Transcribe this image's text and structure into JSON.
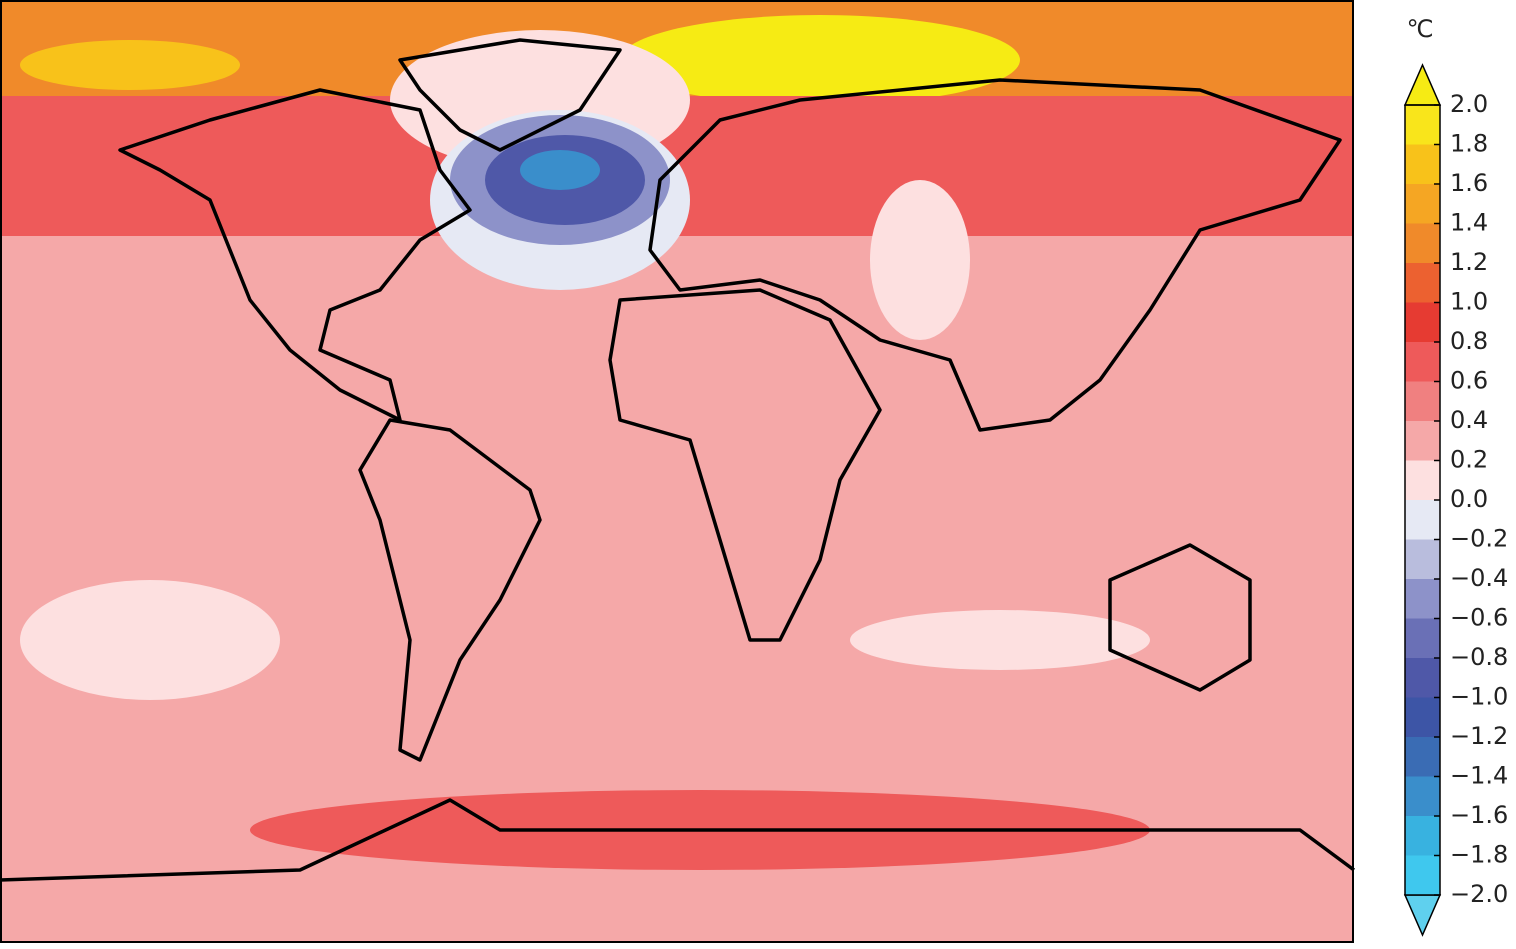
{
  "colorbar": {
    "unit": "℃",
    "range": [
      -2,
      2
    ],
    "ticks": [
      {
        "value": 2,
        "label": "2.0"
      },
      {
        "value": 1.8,
        "label": "1.8"
      },
      {
        "value": 1.6,
        "label": "1.6"
      },
      {
        "value": 1.4,
        "label": "1.4"
      },
      {
        "value": 1.2,
        "label": "1.2"
      },
      {
        "value": 1,
        "label": "1.0"
      },
      {
        "value": 0.8,
        "label": "0.8"
      },
      {
        "value": 0.6,
        "label": "0.6"
      },
      {
        "value": 0.4,
        "label": "0.4"
      },
      {
        "value": 0.2,
        "label": "0.2"
      },
      {
        "value": 0,
        "label": "0.0"
      },
      {
        "value": -0.2,
        "label": "−0.2"
      },
      {
        "value": -0.4,
        "label": "−0.4"
      },
      {
        "value": -0.6,
        "label": "−0.6"
      },
      {
        "value": -0.8,
        "label": "−0.8"
      },
      {
        "value": -1,
        "label": "−1.0"
      },
      {
        "value": -1.2,
        "label": "−1.2"
      },
      {
        "value": -1.4,
        "label": "−1.4"
      },
      {
        "value": -1.6,
        "label": "−1.6"
      },
      {
        "value": -1.8,
        "label": "−1.8"
      },
      {
        "value": -2,
        "label": "−2.0"
      }
    ],
    "colors": [
      "#5fd0ee",
      "#3fc8ee",
      "#38b2e0",
      "#3a8ecb",
      "#3a6cb4",
      "#3d55a6",
      "#4f58a8",
      "#6a70b6",
      "#8d92c9",
      "#b9bddd",
      "#e6e9f4",
      "#fde0e0",
      "#f5a8a8",
      "#f08080",
      "#ee5a5a",
      "#e63b32",
      "#ec6130",
      "#f08a2a",
      "#f5a623",
      "#f8c21a",
      "#f9e51b",
      "#f6eb14"
    ]
  }
}
